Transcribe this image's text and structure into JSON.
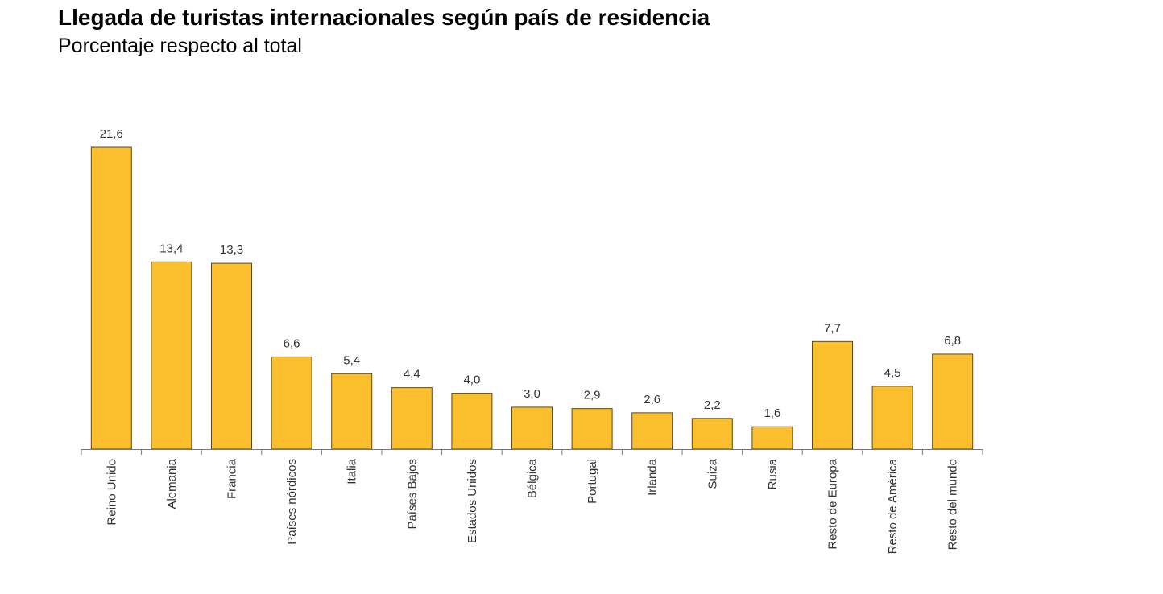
{
  "chart_data": {
    "type": "bar",
    "title": "Llegada de turistas internacionales según país de residencia",
    "subtitle": "Porcentaje respecto al total",
    "categories": [
      "Reino Unido",
      "Alemania",
      "Francia",
      "Países nórdicos",
      "Italia",
      "Países Bajos",
      "Estados Unidos",
      "Bélgica",
      "Portugal",
      "Irlanda",
      "Suiza",
      "Rusia",
      "Resto de Europa",
      "Resto de América",
      "Resto del mundo"
    ],
    "values": [
      21.6,
      13.4,
      13.3,
      6.6,
      5.4,
      4.4,
      4.0,
      3.0,
      2.9,
      2.6,
      2.2,
      1.6,
      7.7,
      4.5,
      6.8
    ],
    "value_labels": [
      "21,6",
      "13,4",
      "13,3",
      "6,6",
      "5,4",
      "4,4",
      "4,0",
      "3,0",
      "2,9",
      "2,6",
      "2,2",
      "1,6",
      "7,7",
      "4,5",
      "6,8"
    ],
    "color": "#fbbf2e"
  }
}
